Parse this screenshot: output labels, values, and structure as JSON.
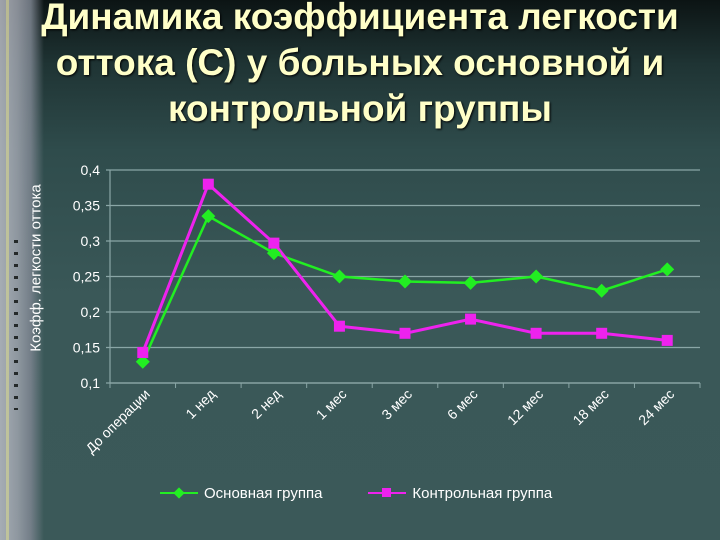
{
  "slide": {
    "title_lines": [
      "Динамика коэффициента легкости",
      "оттока (С) у больных основной и",
      "контрольной группы"
    ]
  },
  "chart_data": {
    "type": "line",
    "title": "Динамика коэффициента легкости оттока (С) у больных основной и контрольной группы",
    "xlabel": "",
    "ylabel": "Коэфф. легкости оттока",
    "categories": [
      "До операции",
      "1 нед",
      "2 нед",
      "1 мес",
      "3 мес",
      "6 мес",
      "12 мес",
      "18 мес",
      "24 мес"
    ],
    "series": [
      {
        "name": "Основная группа",
        "color": "#22ee22",
        "marker": "diamond",
        "values": [
          0.13,
          0.335,
          0.283,
          0.25,
          0.243,
          0.241,
          0.25,
          0.23,
          0.26
        ]
      },
      {
        "name": "Контрольная группа",
        "color": "#ee22ee",
        "marker": "square",
        "values": [
          0.143,
          0.38,
          0.297,
          0.18,
          0.17,
          0.19,
          0.17,
          0.17,
          0.16
        ]
      }
    ],
    "ylim": [
      0.1,
      0.4
    ],
    "yticks": [
      "0,1",
      "0,15",
      "0,2",
      "0,25",
      "0,3",
      "0,35",
      "0,4"
    ],
    "ytick_values": [
      0.1,
      0.15,
      0.2,
      0.25,
      0.3,
      0.35,
      0.4
    ],
    "grid": true,
    "legend_position": "bottom",
    "colors": {
      "gridline": "#8aa6a6",
      "tick_text": "#ffffff",
      "title_text": "#ffffc8"
    }
  }
}
